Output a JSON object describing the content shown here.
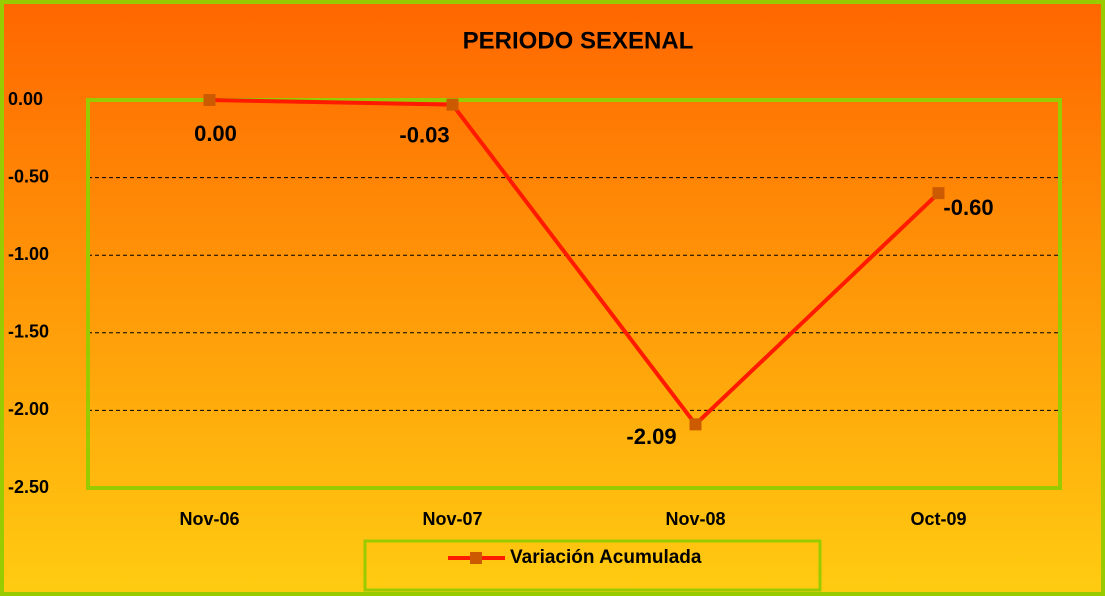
{
  "chart_data": {
    "type": "line",
    "title": "PERIODO SEXENAL",
    "categories": [
      "Nov-06",
      "Nov-07",
      "Nov-08",
      "Oct-09"
    ],
    "series": [
      {
        "name": "Variación Acumulada",
        "color": "#ff1a00",
        "marker_color": "#cc5a00",
        "values": [
          0,
          -0.03,
          -2.09,
          -0.6
        ],
        "value_labels": [
          "0.00",
          "-0.03",
          "-2.09",
          "-0.60"
        ]
      }
    ],
    "ylim": [
      -2.5,
      0
    ],
    "yticks": [
      {
        "value": 0,
        "label": "0.00"
      },
      {
        "value": -0.5,
        "label": "-0.50"
      },
      {
        "value": -1,
        "label": "-1.00"
      },
      {
        "value": -1.5,
        "label": "-1.50"
      },
      {
        "value": -2,
        "label": "-2.00"
      },
      {
        "value": -2.5,
        "label": "-2.50"
      }
    ],
    "grid": true,
    "legend": "bottom"
  }
}
